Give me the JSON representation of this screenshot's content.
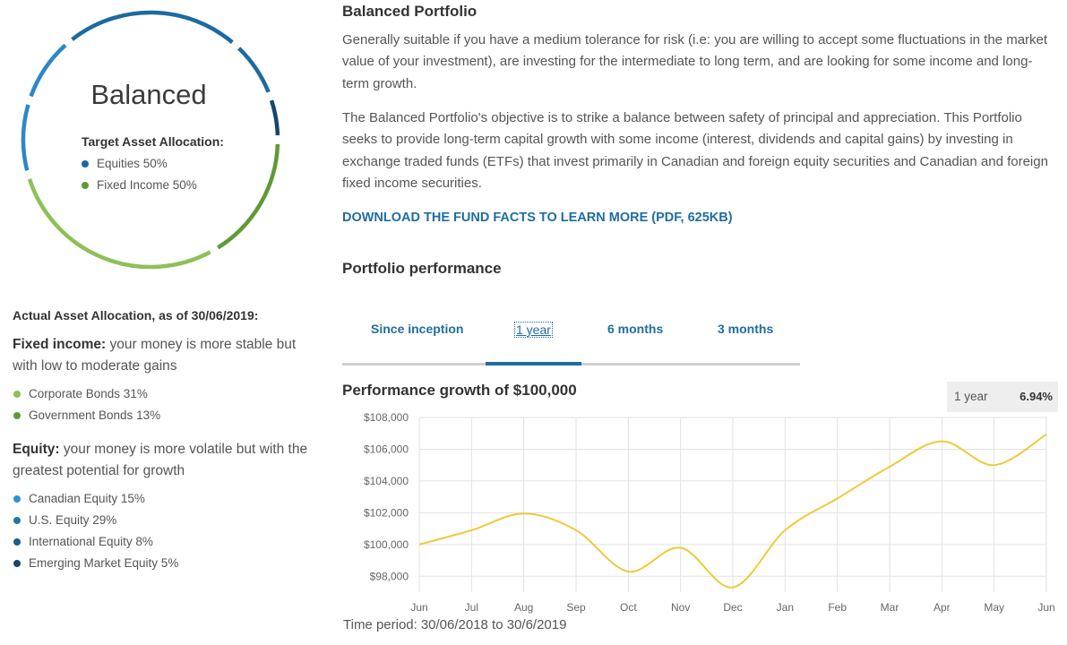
{
  "portfolio_card": {
    "name": "Balanced",
    "target_heading": "Target Asset Allocation:",
    "target_items": [
      {
        "label": "Equities 50%",
        "color": "#1b6aa0"
      },
      {
        "label": "Fixed Income 50%",
        "color": "#5f9a35"
      }
    ],
    "ring_colors": {
      "blue_dark": "#1b6aa0",
      "blue_mid": "#2a88c8",
      "green_dark": "#5f9a35",
      "green_light": "#8dc058"
    }
  },
  "actual_allocation": {
    "heading": "Actual Asset Allocation, as of 30/06/2019:",
    "fixed_income": {
      "label": "Fixed income:",
      "desc": "your money is more stable but with low to moderate gains",
      "items": [
        {
          "label": "Corporate Bonds 31%",
          "color": "#8dc058"
        },
        {
          "label": "Government Bonds 13%",
          "color": "#5f9a35"
        }
      ]
    },
    "equity": {
      "label": "Equity:",
      "desc": "your money is more volatile but with the greatest potential for growth",
      "items": [
        {
          "label": "Canadian Equity 15%",
          "color": "#2a93d5"
        },
        {
          "label": "U.S. Equity 29%",
          "color": "#1b78ab"
        },
        {
          "label": "International Equity 8%",
          "color": "#1b5e8a"
        },
        {
          "label": "Emerging Market Equity 5%",
          "color": "#16466b"
        }
      ]
    }
  },
  "portfolio": {
    "title": "Balanced Portfolio",
    "para1": "Generally suitable if you have a medium tolerance for risk (i.e: you are willing to accept some fluctuations in the market value of your investment), are investing for the intermediate to long term, and are looking for some income and long-term growth.",
    "para2": "The Balanced Portfolio's objective is to strike a balance between safety of principal and appreciation. This Portfolio seeks to provide long-term capital growth with some income (interest, dividends and capital gains) by investing in exchange traded funds (ETFs) that invest primarily in Canadian and foreign equity securities and Canadian and foreign fixed income securities.",
    "download_link": "DOWNLOAD THE FUND FACTS TO LEARN MORE (PDF, 625KB)"
  },
  "performance": {
    "title": "Portfolio performance",
    "tabs": [
      {
        "label": "Since inception",
        "active": false
      },
      {
        "label": "1 year",
        "active": true
      },
      {
        "label": "6 months",
        "active": false
      },
      {
        "label": "3 months",
        "active": false
      }
    ],
    "chart_title": "Performance growth of $100,000",
    "badge_label": "1 year",
    "badge_value": "6.94%",
    "time_period_label": "Time period:",
    "time_period_value": "30/06/2018 to 30/6/2019"
  },
  "chart_data": {
    "type": "line",
    "title": "Performance growth of $100,000",
    "x_labels": [
      "Jun",
      "Jul",
      "Aug",
      "Sep",
      "Oct",
      "Nov",
      "Dec",
      "Jan",
      "Feb",
      "Mar",
      "Apr",
      "May",
      "Jun"
    ],
    "y_ticks": [
      "$98,000",
      "$100,000",
      "$102,000",
      "$104,000",
      "$106,000",
      "$108,000"
    ],
    "ylim": [
      97000,
      108000
    ],
    "series": [
      {
        "values": [
          100000,
          100900,
          101950,
          100900,
          98300,
          99800,
          97300,
          100900,
          102900,
          104900,
          106500,
          105000,
          106940
        ],
        "color": "#f0c93a"
      }
    ],
    "grid": true
  }
}
